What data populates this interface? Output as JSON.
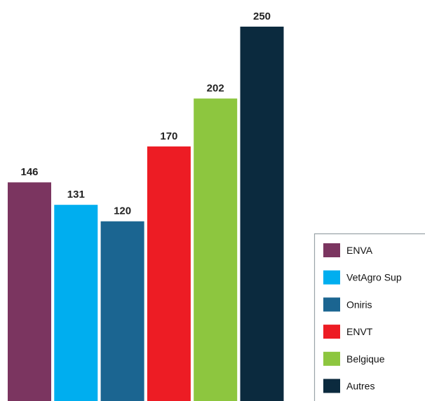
{
  "chart_data": {
    "type": "bar",
    "categories": [
      "ENVA",
      "VetAgro Sup",
      "Oniris",
      "ENVT",
      "Belgique",
      "Autres"
    ],
    "values": [
      146,
      131,
      120,
      170,
      202,
      250
    ],
    "colors": [
      "#7b3560",
      "#00aeef",
      "#1b6591",
      "#ed1c24",
      "#8dc63f",
      "#0b2a3e"
    ],
    "legend": "lower right"
  }
}
